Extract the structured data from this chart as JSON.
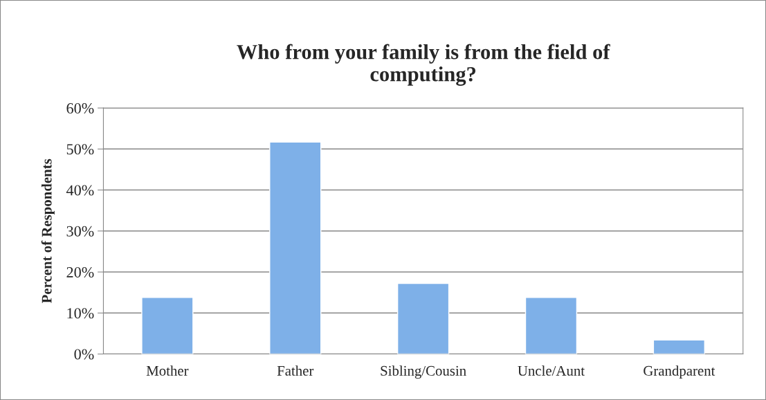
{
  "chart_data": {
    "type": "bar",
    "title": "Who from your family is from the field of\ncomputing?",
    "ylabel": "Percent of Respondents",
    "categories": [
      "Mother",
      "Father",
      "Sibling/Cousin",
      "Uncle/Aunt",
      "Grandparent"
    ],
    "values": [
      13.8,
      51.7,
      17.2,
      13.8,
      3.4
    ],
    "color": "#7eb0e8",
    "ylim": [
      0,
      60
    ],
    "yticks": [
      {
        "value": 0,
        "label": "0%"
      },
      {
        "value": 10,
        "label": "10%"
      },
      {
        "value": 20,
        "label": "20%"
      },
      {
        "value": 30,
        "label": "30%"
      },
      {
        "value": 40,
        "label": "40%"
      },
      {
        "value": 50,
        "label": "50%"
      },
      {
        "value": 60,
        "label": "60%"
      }
    ],
    "grid": "y"
  }
}
